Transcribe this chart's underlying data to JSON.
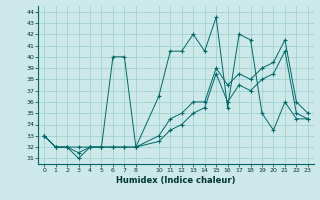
{
  "xlabel": "Humidex (Indice chaleur)",
  "bg_color": "#cce8e8",
  "line_color": "#006868",
  "grid_color": "#99cccc",
  "xlim": [
    -0.5,
    23.5
  ],
  "ylim": [
    30.5,
    44.5
  ],
  "xticks": [
    0,
    1,
    2,
    3,
    4,
    5,
    6,
    7,
    8,
    10,
    11,
    12,
    13,
    14,
    15,
    16,
    17,
    18,
    19,
    20,
    21,
    22,
    23
  ],
  "yticks": [
    31,
    32,
    33,
    34,
    35,
    36,
    37,
    38,
    39,
    40,
    41,
    42,
    43,
    44
  ],
  "line1_x": [
    0,
    1,
    2,
    3,
    4,
    5,
    6,
    7,
    8,
    10,
    11,
    12,
    13,
    14,
    15,
    16,
    17,
    18,
    19,
    20,
    21,
    22,
    23
  ],
  "line1_y": [
    33,
    32,
    32,
    31,
    32,
    32,
    40,
    40,
    32,
    36.5,
    40.5,
    40.5,
    42,
    40.5,
    43.5,
    35.5,
    42,
    41.5,
    35,
    33.5,
    36,
    34.5,
    34.5
  ],
  "line2_x": [
    0,
    1,
    2,
    3,
    4,
    5,
    6,
    7,
    8,
    10,
    11,
    12,
    13,
    14,
    15,
    16,
    17,
    18,
    19,
    20,
    21,
    22,
    23
  ],
  "line2_y": [
    33,
    32,
    32,
    32,
    32,
    32,
    32,
    32,
    32,
    33,
    34.5,
    35,
    36,
    36,
    39,
    37.5,
    38.5,
    38,
    39,
    39.5,
    41.5,
    36,
    35
  ],
  "line3_x": [
    0,
    1,
    2,
    3,
    4,
    5,
    6,
    7,
    8,
    10,
    11,
    12,
    13,
    14,
    15,
    16,
    17,
    18,
    19,
    20,
    21,
    22,
    23
  ],
  "line3_y": [
    33,
    32,
    32,
    31.5,
    32,
    32,
    32,
    32,
    32,
    32.5,
    33.5,
    34,
    35,
    35.5,
    38.5,
    36,
    37.5,
    37,
    38,
    38.5,
    40.5,
    35,
    34.5
  ]
}
